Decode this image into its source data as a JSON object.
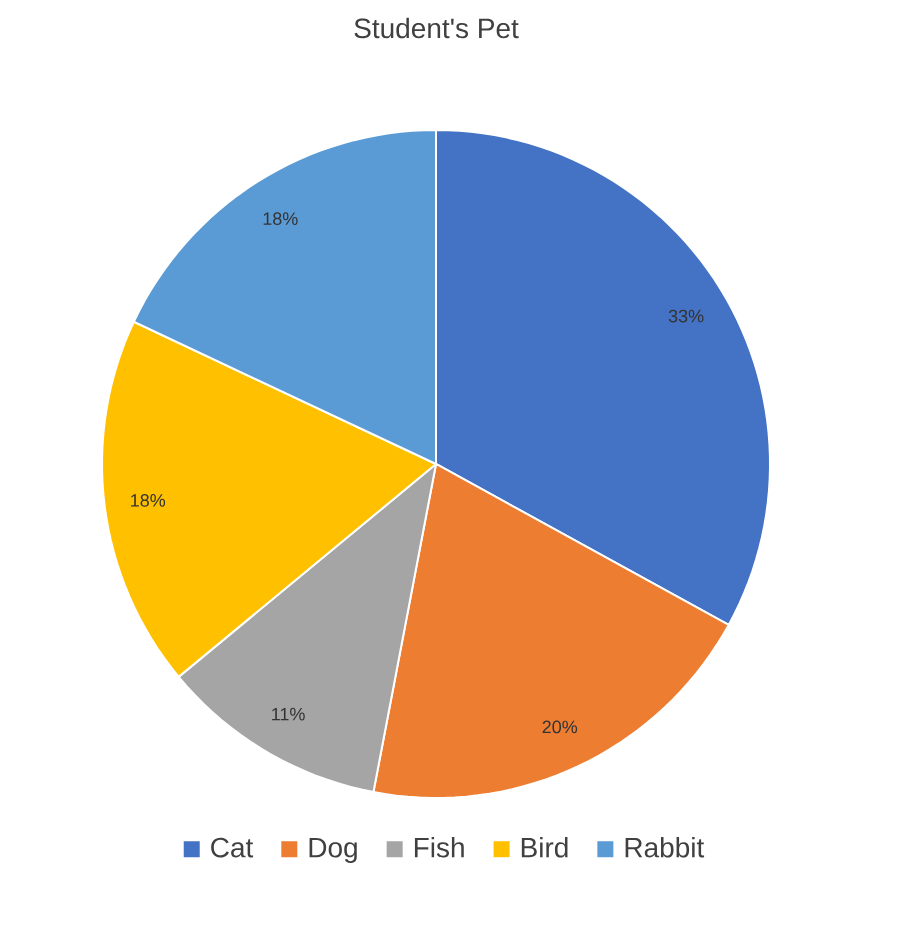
{
  "chart_data": {
    "type": "pie",
    "title": "Student's Pet",
    "categories": [
      "Cat",
      "Dog",
      "Fish",
      "Bird",
      "Rabbit"
    ],
    "values": [
      33,
      20,
      11,
      18,
      18
    ],
    "value_labels": [
      "33%",
      "20%",
      "11%",
      "18%",
      "18%"
    ],
    "colors": [
      "#4472c4",
      "#ed7d31",
      "#a5a5a5",
      "#ffc000",
      "#5b9bd5"
    ],
    "legend": "bottom"
  }
}
